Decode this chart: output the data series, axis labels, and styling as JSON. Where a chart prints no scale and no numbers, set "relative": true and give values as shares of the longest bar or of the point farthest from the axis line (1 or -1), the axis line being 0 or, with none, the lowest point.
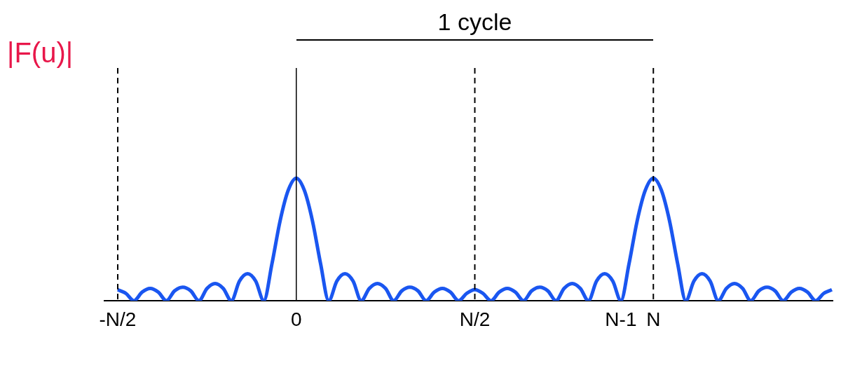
{
  "chart_data": {
    "type": "line",
    "relative": true,
    "ylabel": "|F(u)|",
    "categories": [
      "-N/2",
      null,
      null,
      null,
      null,
      null,
      null,
      null,
      null,
      null,
      null,
      null,
      null,
      null,
      null,
      null,
      null,
      null,
      null,
      null,
      null,
      null,
      "0",
      null,
      null,
      null,
      null,
      null,
      null,
      null,
      null,
      null,
      null,
      null,
      null,
      null,
      null,
      null,
      null,
      null,
      null,
      null,
      null,
      null,
      "N/2",
      null,
      null,
      null,
      null,
      null,
      null,
      null,
      null,
      null,
      null,
      null,
      null,
      null,
      null,
      null,
      null,
      null,
      "N-1",
      null,
      null,
      null,
      "N",
      null,
      null,
      null,
      null,
      null,
      null,
      null,
      null,
      null,
      null,
      null,
      null,
      null,
      null,
      null,
      null,
      null,
      null,
      null,
      null,
      null,
      null
    ],
    "series": [
      {
        "color": "#1a56f0",
        "values": [
          0.09,
          0.06,
          0,
          0.07,
          0.1,
          0.07,
          0,
          0.08,
          0.11,
          0.08,
          0,
          0.1,
          0.14,
          0.1,
          0,
          0.16,
          0.22,
          0.16,
          0,
          0.3,
          0.65,
          0.9,
          1,
          0.9,
          0.65,
          0.3,
          0,
          0.16,
          0.22,
          0.16,
          0,
          0.1,
          0.14,
          0.1,
          0,
          0.08,
          0.11,
          0.08,
          0,
          0.07,
          0.1,
          0.07,
          0,
          0.06,
          0.09,
          0.06,
          0,
          0.07,
          0.1,
          0.07,
          0,
          0.08,
          0.11,
          0.08,
          0,
          0.1,
          0.14,
          0.1,
          0,
          0.16,
          0.22,
          0.16,
          0,
          0.3,
          0.65,
          0.9,
          1,
          0.9,
          0.65,
          0.3,
          0,
          0.16,
          0.22,
          0.16,
          0,
          0.1,
          0.14,
          0.1,
          0,
          0.08,
          0.11,
          0.08,
          0,
          0.07,
          0.1,
          0.07,
          0,
          0.06,
          0.09
        ]
      }
    ],
    "ref_lines": [
      {
        "axis": "x",
        "value": "-N/2",
        "color": "#000000",
        "line_style": "dashed"
      },
      {
        "axis": "x",
        "value": "0",
        "color": "#000000",
        "line_style": "solid"
      },
      {
        "axis": "x",
        "value": "N/2",
        "color": "#000000",
        "line_style": "dashed"
      },
      {
        "axis": "x",
        "value": "N",
        "color": "#000000",
        "line_style": "dashed"
      }
    ],
    "annotations": [
      "1 cycle"
    ],
    "marker": "none",
    "line_style": "solid",
    "grid": false,
    "legend": false
  }
}
